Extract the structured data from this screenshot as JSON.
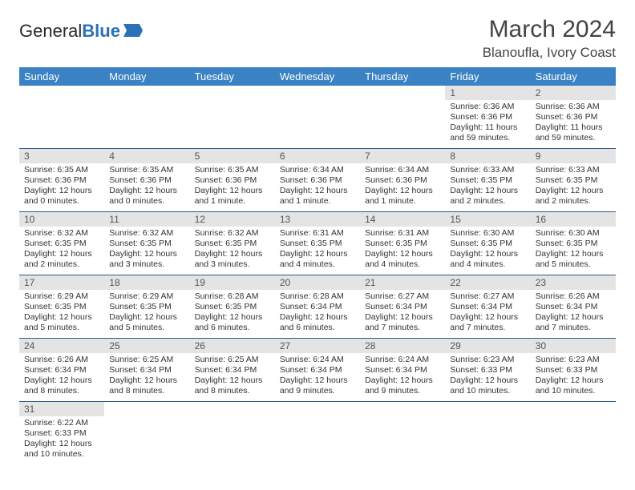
{
  "brand": {
    "part1": "General",
    "part2": "Blue"
  },
  "title": "March 2024",
  "location": "Blanoufla, Ivory Coast",
  "colors": {
    "header_bg": "#3b82c4",
    "header_text": "#ffffff",
    "daynum_bg": "#e4e4e4",
    "row_border": "#2b5a8a",
    "brand_blue": "#2b71b8"
  },
  "weekdays": [
    "Sunday",
    "Monday",
    "Tuesday",
    "Wednesday",
    "Thursday",
    "Friday",
    "Saturday"
  ],
  "weeks": [
    [
      null,
      null,
      null,
      null,
      null,
      {
        "n": "1",
        "sr": "Sunrise: 6:36 AM",
        "ss": "Sunset: 6:36 PM",
        "dl": "Daylight: 11 hours and 59 minutes."
      },
      {
        "n": "2",
        "sr": "Sunrise: 6:36 AM",
        "ss": "Sunset: 6:36 PM",
        "dl": "Daylight: 11 hours and 59 minutes."
      }
    ],
    [
      {
        "n": "3",
        "sr": "Sunrise: 6:35 AM",
        "ss": "Sunset: 6:36 PM",
        "dl": "Daylight: 12 hours and 0 minutes."
      },
      {
        "n": "4",
        "sr": "Sunrise: 6:35 AM",
        "ss": "Sunset: 6:36 PM",
        "dl": "Daylight: 12 hours and 0 minutes."
      },
      {
        "n": "5",
        "sr": "Sunrise: 6:35 AM",
        "ss": "Sunset: 6:36 PM",
        "dl": "Daylight: 12 hours and 1 minute."
      },
      {
        "n": "6",
        "sr": "Sunrise: 6:34 AM",
        "ss": "Sunset: 6:36 PM",
        "dl": "Daylight: 12 hours and 1 minute."
      },
      {
        "n": "7",
        "sr": "Sunrise: 6:34 AM",
        "ss": "Sunset: 6:36 PM",
        "dl": "Daylight: 12 hours and 1 minute."
      },
      {
        "n": "8",
        "sr": "Sunrise: 6:33 AM",
        "ss": "Sunset: 6:35 PM",
        "dl": "Daylight: 12 hours and 2 minutes."
      },
      {
        "n": "9",
        "sr": "Sunrise: 6:33 AM",
        "ss": "Sunset: 6:35 PM",
        "dl": "Daylight: 12 hours and 2 minutes."
      }
    ],
    [
      {
        "n": "10",
        "sr": "Sunrise: 6:32 AM",
        "ss": "Sunset: 6:35 PM",
        "dl": "Daylight: 12 hours and 2 minutes."
      },
      {
        "n": "11",
        "sr": "Sunrise: 6:32 AM",
        "ss": "Sunset: 6:35 PM",
        "dl": "Daylight: 12 hours and 3 minutes."
      },
      {
        "n": "12",
        "sr": "Sunrise: 6:32 AM",
        "ss": "Sunset: 6:35 PM",
        "dl": "Daylight: 12 hours and 3 minutes."
      },
      {
        "n": "13",
        "sr": "Sunrise: 6:31 AM",
        "ss": "Sunset: 6:35 PM",
        "dl": "Daylight: 12 hours and 4 minutes."
      },
      {
        "n": "14",
        "sr": "Sunrise: 6:31 AM",
        "ss": "Sunset: 6:35 PM",
        "dl": "Daylight: 12 hours and 4 minutes."
      },
      {
        "n": "15",
        "sr": "Sunrise: 6:30 AM",
        "ss": "Sunset: 6:35 PM",
        "dl": "Daylight: 12 hours and 4 minutes."
      },
      {
        "n": "16",
        "sr": "Sunrise: 6:30 AM",
        "ss": "Sunset: 6:35 PM",
        "dl": "Daylight: 12 hours and 5 minutes."
      }
    ],
    [
      {
        "n": "17",
        "sr": "Sunrise: 6:29 AM",
        "ss": "Sunset: 6:35 PM",
        "dl": "Daylight: 12 hours and 5 minutes."
      },
      {
        "n": "18",
        "sr": "Sunrise: 6:29 AM",
        "ss": "Sunset: 6:35 PM",
        "dl": "Daylight: 12 hours and 5 minutes."
      },
      {
        "n": "19",
        "sr": "Sunrise: 6:28 AM",
        "ss": "Sunset: 6:35 PM",
        "dl": "Daylight: 12 hours and 6 minutes."
      },
      {
        "n": "20",
        "sr": "Sunrise: 6:28 AM",
        "ss": "Sunset: 6:34 PM",
        "dl": "Daylight: 12 hours and 6 minutes."
      },
      {
        "n": "21",
        "sr": "Sunrise: 6:27 AM",
        "ss": "Sunset: 6:34 PM",
        "dl": "Daylight: 12 hours and 7 minutes."
      },
      {
        "n": "22",
        "sr": "Sunrise: 6:27 AM",
        "ss": "Sunset: 6:34 PM",
        "dl": "Daylight: 12 hours and 7 minutes."
      },
      {
        "n": "23",
        "sr": "Sunrise: 6:26 AM",
        "ss": "Sunset: 6:34 PM",
        "dl": "Daylight: 12 hours and 7 minutes."
      }
    ],
    [
      {
        "n": "24",
        "sr": "Sunrise: 6:26 AM",
        "ss": "Sunset: 6:34 PM",
        "dl": "Daylight: 12 hours and 8 minutes."
      },
      {
        "n": "25",
        "sr": "Sunrise: 6:25 AM",
        "ss": "Sunset: 6:34 PM",
        "dl": "Daylight: 12 hours and 8 minutes."
      },
      {
        "n": "26",
        "sr": "Sunrise: 6:25 AM",
        "ss": "Sunset: 6:34 PM",
        "dl": "Daylight: 12 hours and 8 minutes."
      },
      {
        "n": "27",
        "sr": "Sunrise: 6:24 AM",
        "ss": "Sunset: 6:34 PM",
        "dl": "Daylight: 12 hours and 9 minutes."
      },
      {
        "n": "28",
        "sr": "Sunrise: 6:24 AM",
        "ss": "Sunset: 6:34 PM",
        "dl": "Daylight: 12 hours and 9 minutes."
      },
      {
        "n": "29",
        "sr": "Sunrise: 6:23 AM",
        "ss": "Sunset: 6:33 PM",
        "dl": "Daylight: 12 hours and 10 minutes."
      },
      {
        "n": "30",
        "sr": "Sunrise: 6:23 AM",
        "ss": "Sunset: 6:33 PM",
        "dl": "Daylight: 12 hours and 10 minutes."
      }
    ],
    [
      {
        "n": "31",
        "sr": "Sunrise: 6:22 AM",
        "ss": "Sunset: 6:33 PM",
        "dl": "Daylight: 12 hours and 10 minutes."
      },
      null,
      null,
      null,
      null,
      null,
      null
    ]
  ]
}
